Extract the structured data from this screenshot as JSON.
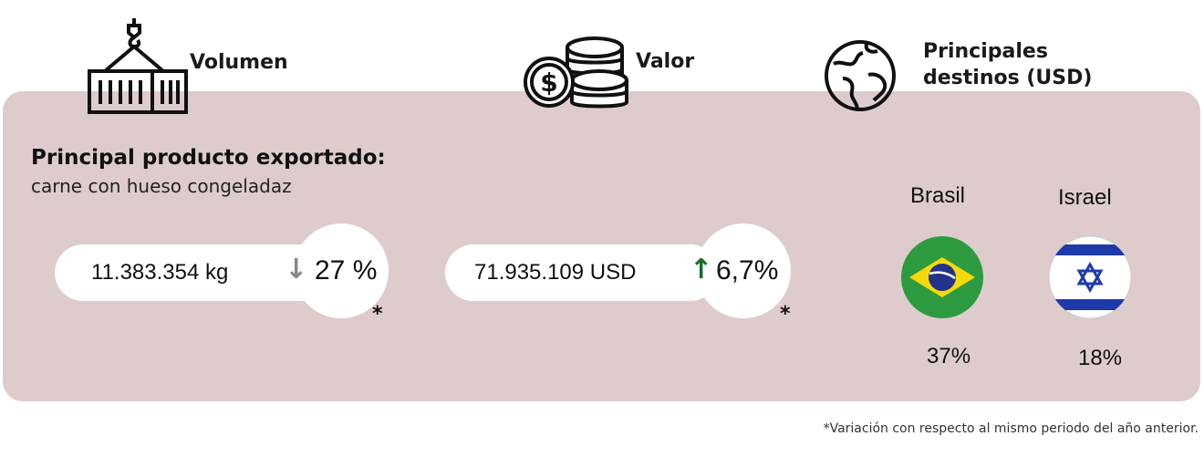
{
  "headers": {
    "volume": "Volumen",
    "value": "Valor",
    "destinations": "Principales destinos (USD)"
  },
  "product": {
    "label": "Principal producto exportado:",
    "name": "carne con hueso congeladaz"
  },
  "volume": {
    "amount": "11.383.354 kg",
    "change": "27 %",
    "direction": "down",
    "arrow_color": "#888888",
    "note": "*"
  },
  "value": {
    "amount": "71.935.109 USD",
    "change": "6,7%",
    "direction": "up",
    "arrow_color": "#1a6b2e",
    "note": "*"
  },
  "destinations": [
    {
      "country": "Brasil",
      "share": "37%"
    },
    {
      "country": "Israel",
      "share": "18%"
    }
  ],
  "footnote": "*Variación con respecto al mismo periodo del año anterior.",
  "colors": {
    "panel": "#decccc"
  }
}
